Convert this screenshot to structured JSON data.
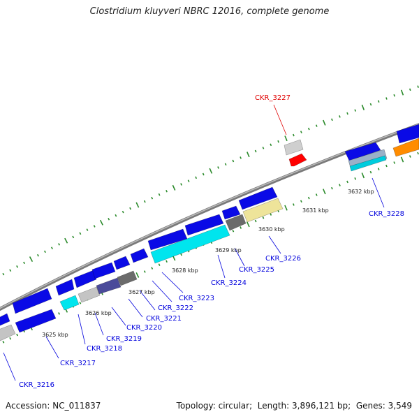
{
  "title": "Clostridium kluyveri NBRC 12016, complete genome",
  "footer": {
    "accession_label": "Accession:",
    "accession": "NC_011837",
    "topology_label": "Topology:",
    "topology": "circular",
    "length_label": "Length:",
    "length": "3,896,121 bp",
    "genes_label": "Genes:",
    "genes": "3,549"
  },
  "colors": {
    "backbone": "#8a8a8a",
    "forward_gene": "#0a0ae6",
    "tick_dots": "#2a8a2a",
    "highlight_gene": "#ff0000",
    "gene_label": "#0000dd",
    "highlight_label": "#e00000"
  },
  "scale_labels": [
    "3625 kbp",
    "3626 kbp",
    "3627 kbp",
    "3628 kbp",
    "3629 kbp",
    "3630 kbp",
    "3631 kbp",
    "3632 kbp"
  ],
  "gene_labels": [
    {
      "id": "CKR_3216",
      "color": "blue"
    },
    {
      "id": "CKR_3217",
      "color": "blue"
    },
    {
      "id": "CKR_3218",
      "color": "blue"
    },
    {
      "id": "CKR_3219",
      "color": "blue"
    },
    {
      "id": "CKR_3220",
      "color": "blue"
    },
    {
      "id": "CKR_3221",
      "color": "blue"
    },
    {
      "id": "CKR_3222",
      "color": "blue"
    },
    {
      "id": "CKR_3223",
      "color": "blue"
    },
    {
      "id": "CKR_3224",
      "color": "blue"
    },
    {
      "id": "CKR_3225",
      "color": "blue"
    },
    {
      "id": "CKR_3226",
      "color": "blue"
    },
    {
      "id": "CKR_3227",
      "color": "red"
    },
    {
      "id": "CKR_3228",
      "color": "blue"
    }
  ]
}
